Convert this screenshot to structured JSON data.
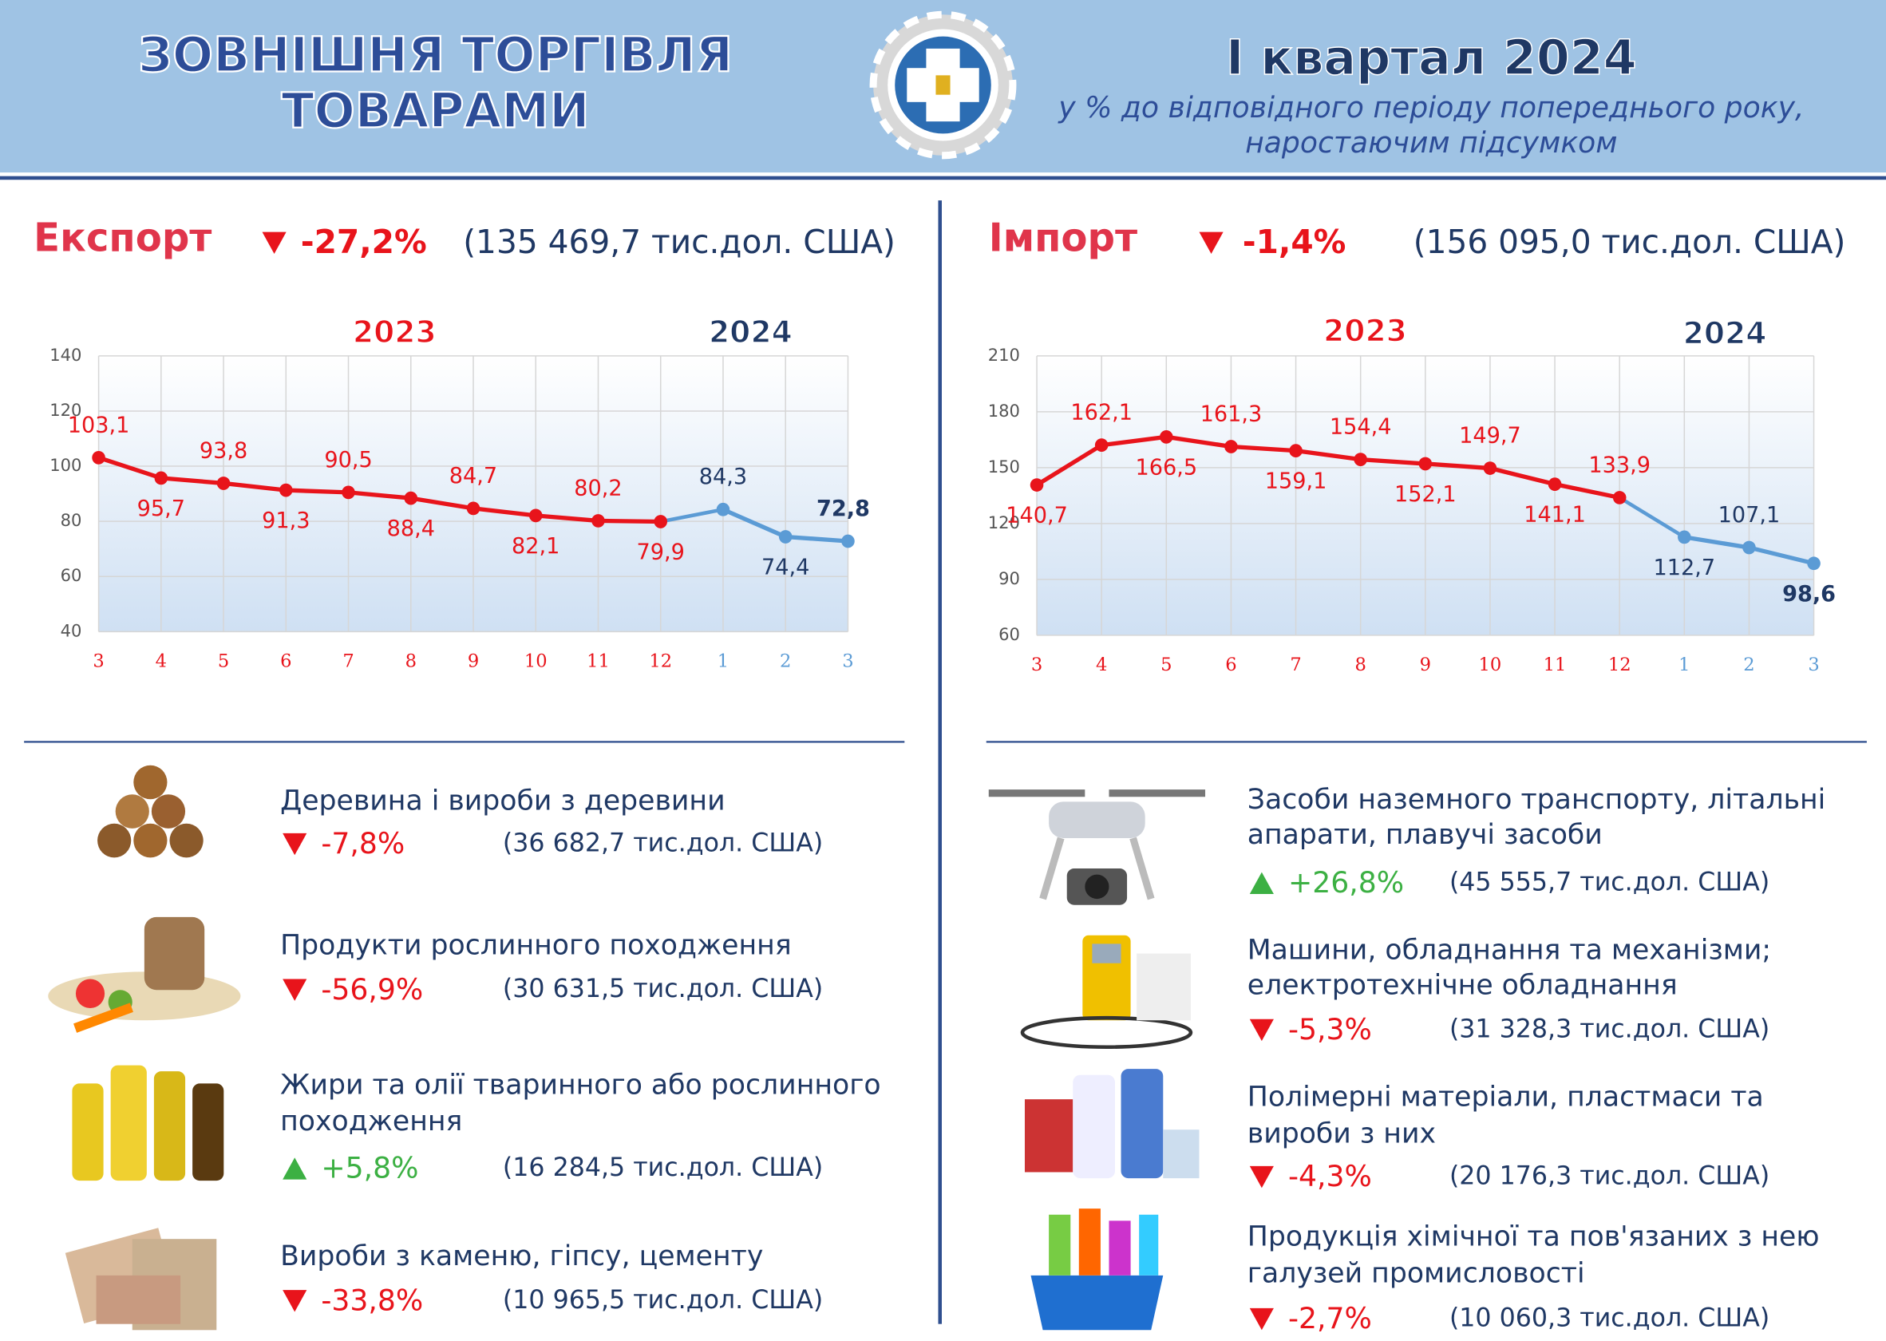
{
  "header": {
    "title_lines": [
      "ЗОВНІШНЯ ТОРГІВЛЯ",
      "ТОВАРАМИ"
    ],
    "period": "І квартал 2024",
    "subtitle_lines": [
      "у % до відповідного періоду попереднього року,",
      "наростаючим підсумком"
    ]
  },
  "export": {
    "label": "Експорт",
    "change": "-27,2%",
    "total": "(135 469,7 тис.дол. США)",
    "groups": [
      {
        "name": [
          "Деревина і вироби з деревини"
        ],
        "change": "-7,8%",
        "amount": "(36 682,7 тис.дол. США)"
      },
      {
        "name": [
          "Продукти рослинного походження"
        ],
        "change": "-56,9%",
        "amount": "(30 631,5 тис.дол. США)"
      },
      {
        "name": [
          "Жири та олії тваринного або рослинного",
          "походження"
        ],
        "change": "+5,8%",
        "amount": "(16 284,5 тис.дол. США)"
      },
      {
        "name": [
          "Вироби з каменю, гіпсу, цементу"
        ],
        "change": "-33,8%",
        "amount": "(10 965,5 тис.дол. США)"
      }
    ]
  },
  "import": {
    "label": "Імпорт",
    "change": "-1,4%",
    "total": "(156 095,0 тис.дол. США)",
    "groups": [
      {
        "name": [
          "Засоби наземного транспорту, літальні",
          "апарати, плавучі засоби"
        ],
        "change": "+26,8%",
        "amount": "(45 555,7 тис.дол. США)"
      },
      {
        "name": [
          "Машини, обладнання та механізми;",
          "електротехнічне обладнання"
        ],
        "change": "-5,3%",
        "amount": "(31 328,3 тис.дол. США)"
      },
      {
        "name": [
          "Полімерні матеріали, пластмаси та",
          "вироби з них"
        ],
        "change": "-4,3%",
        "amount": "(20 176,3 тис.дол. США)"
      },
      {
        "name": [
          "Продукція хімічної та пов'язаних з нею",
          "галузей промисловості"
        ],
        "change": "-2,7%",
        "amount": "(10 060,3 тис.дол. США)"
      }
    ]
  },
  "chart_data": [
    {
      "type": "line",
      "categories": [
        "3",
        "4",
        "5",
        "6",
        "7",
        "8",
        "9",
        "10",
        "11",
        "12",
        "1",
        "2",
        "3"
      ],
      "series": [
        {
          "name": "2023",
          "color": "#e8141b",
          "values": [
            103.1,
            95.7,
            93.8,
            91.3,
            90.5,
            88.4,
            84.7,
            82.1,
            80.2,
            79.9,
            null,
            null,
            null
          ],
          "value_labels": [
            "103,1",
            "95,7",
            "93,8",
            "91,3",
            "90,5",
            "88,4",
            "84,7",
            "82,1",
            "80,2",
            "79,9",
            null,
            null,
            null
          ]
        },
        {
          "name": "2024",
          "color": "#5b9bd5",
          "values": [
            null,
            null,
            null,
            null,
            null,
            null,
            null,
            null,
            null,
            null,
            84.3,
            74.4,
            72.8
          ],
          "value_labels": [
            null,
            null,
            null,
            null,
            null,
            null,
            null,
            null,
            null,
            null,
            "84,3",
            "74,4",
            "72,8"
          ]
        }
      ],
      "ylim": [
        40,
        140
      ],
      "yticks": [
        40,
        60,
        80,
        100,
        120,
        140
      ],
      "grid": true
    },
    {
      "type": "line",
      "categories": [
        "3",
        "4",
        "5",
        "6",
        "7",
        "8",
        "9",
        "10",
        "11",
        "12",
        "1",
        "2",
        "3"
      ],
      "series": [
        {
          "name": "2023",
          "color": "#e8141b",
          "values": [
            140.7,
            162.1,
            166.5,
            161.3,
            159.1,
            154.4,
            152.1,
            149.7,
            141.1,
            133.9,
            null,
            null,
            null
          ],
          "value_labels": [
            "140,7",
            "162,1",
            "166,5",
            "161,3",
            "159,1",
            "154,4",
            "152,1",
            "149,7",
            "141,1",
            "133,9",
            null,
            null,
            null
          ]
        },
        {
          "name": "2024",
          "color": "#5b9bd5",
          "values": [
            null,
            null,
            null,
            null,
            null,
            null,
            null,
            null,
            null,
            null,
            112.7,
            107.1,
            98.6
          ],
          "value_labels": [
            null,
            null,
            null,
            null,
            null,
            null,
            null,
            null,
            null,
            null,
            "112,7",
            "107,1",
            "98,6"
          ]
        }
      ],
      "ylim": [
        60,
        210
      ],
      "yticks": [
        60,
        90,
        120,
        150,
        180,
        210
      ],
      "grid": true
    }
  ]
}
